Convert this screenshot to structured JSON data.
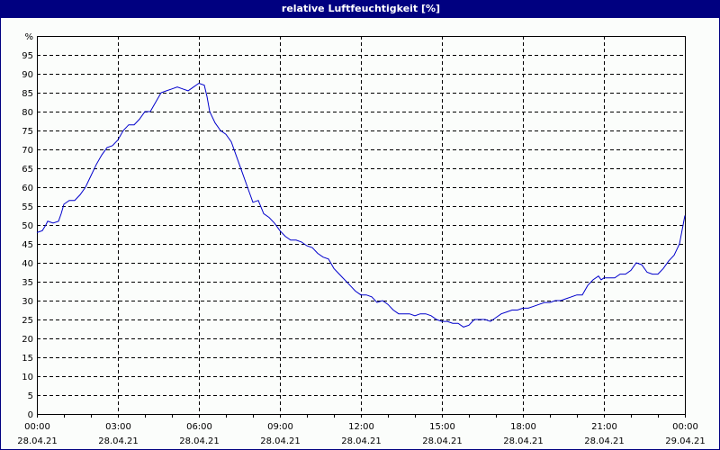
{
  "window": {
    "title": "relative Luftfeuchtigkeit [%]"
  },
  "colors": {
    "titlebar": "#000080",
    "background": "#fbfdfb",
    "line": "#0000cc",
    "grid": "#000000"
  },
  "chart_data": {
    "type": "line",
    "title": "relative Luftfeuchtigkeit [%]",
    "xlabel": "",
    "ylabel": "%",
    "ylim": [
      0,
      100
    ],
    "xlim_hours": [
      0,
      24
    ],
    "grid": true,
    "grid_style": "dashed",
    "legend": null,
    "y_ticks": [
      "0",
      "5",
      "10",
      "15",
      "20",
      "25",
      "30",
      "35",
      "40",
      "45",
      "50",
      "55",
      "60",
      "65",
      "70",
      "75",
      "80",
      "85",
      "90",
      "95",
      "%"
    ],
    "x_ticks": [
      {
        "time": "00:00",
        "date": "28.04.21"
      },
      {
        "time": "03:00",
        "date": "28.04.21"
      },
      {
        "time": "06:00",
        "date": "28.04.21"
      },
      {
        "time": "09:00",
        "date": "28.04.21"
      },
      {
        "time": "12:00",
        "date": "28.04.21"
      },
      {
        "time": "15:00",
        "date": "28.04.21"
      },
      {
        "time": "18:00",
        "date": "28.04.21"
      },
      {
        "time": "21:00",
        "date": "28.04.21"
      },
      {
        "time": "00:00",
        "date": "29.04.21"
      }
    ],
    "series": [
      {
        "name": "relative Luftfeuchtigkeit",
        "x_hours": [
          0,
          0.2,
          0.33,
          0.4,
          0.6,
          0.8,
          0.9,
          1.0,
          1.2,
          1.4,
          1.6,
          1.8,
          2.0,
          2.2,
          2.4,
          2.6,
          2.8,
          3.0,
          3.2,
          3.4,
          3.6,
          3.8,
          4.0,
          4.2,
          4.4,
          4.6,
          4.8,
          5.0,
          5.2,
          5.4,
          5.6,
          5.8,
          6.0,
          6.2,
          6.3,
          6.4,
          6.6,
          6.8,
          7.0,
          7.2,
          7.4,
          7.6,
          7.8,
          8.0,
          8.2,
          8.4,
          8.6,
          8.8,
          9.0,
          9.2,
          9.4,
          9.6,
          9.8,
          10.0,
          10.2,
          10.4,
          10.6,
          10.8,
          11.0,
          11.2,
          11.4,
          11.6,
          11.8,
          12.0,
          12.2,
          12.4,
          12.6,
          12.8,
          13.0,
          13.2,
          13.4,
          13.6,
          13.8,
          14.0,
          14.2,
          14.4,
          14.6,
          14.8,
          15.0,
          15.2,
          15.4,
          15.6,
          15.8,
          16.0,
          16.2,
          16.4,
          16.6,
          16.8,
          17.0,
          17.2,
          17.4,
          17.6,
          17.8,
          18.0,
          18.2,
          18.4,
          18.6,
          18.8,
          19.0,
          19.2,
          19.4,
          19.6,
          19.8,
          20.0,
          20.2,
          20.4,
          20.6,
          20.8,
          20.9,
          21.0,
          21.2,
          21.4,
          21.6,
          21.8,
          22.0,
          22.2,
          22.4,
          22.6,
          22.8,
          23.0,
          23.2,
          23.4,
          23.6,
          23.8,
          24.0
        ],
        "values": [
          48,
          48.5,
          50,
          51,
          50.5,
          51,
          53,
          55.5,
          56.5,
          56.5,
          58,
          60,
          63,
          66,
          68.5,
          70.5,
          71,
          72.5,
          75,
          76.5,
          76.5,
          78,
          80,
          80,
          82.5,
          85,
          85.5,
          86,
          86.5,
          86,
          85.5,
          86.5,
          87.5,
          87,
          84,
          80,
          77,
          75,
          74,
          72,
          68,
          64,
          60,
          56,
          56.5,
          53,
          52,
          50.5,
          48.5,
          47,
          46,
          46,
          45.5,
          44.5,
          44,
          42.5,
          41.5,
          41,
          38.5,
          37,
          35.5,
          34,
          32.5,
          31.5,
          31.5,
          31,
          29.5,
          30,
          29,
          27.5,
          26.5,
          26.5,
          26.5,
          26,
          26.5,
          26.5,
          26,
          25,
          24.5,
          24.5,
          24,
          24,
          23,
          23.5,
          25,
          25,
          25,
          24.5,
          25.5,
          26.5,
          27,
          27.5,
          27.5,
          28,
          28,
          28.5,
          29,
          29.5,
          29.5,
          30,
          30,
          30.5,
          31,
          31.5,
          31.5,
          34,
          35.5,
          36.5,
          35.5,
          36,
          36,
          36,
          37,
          37,
          38,
          40,
          39.5,
          37.5,
          37,
          37,
          38.5,
          40.5,
          42,
          45,
          52.5
        ]
      }
    ]
  }
}
